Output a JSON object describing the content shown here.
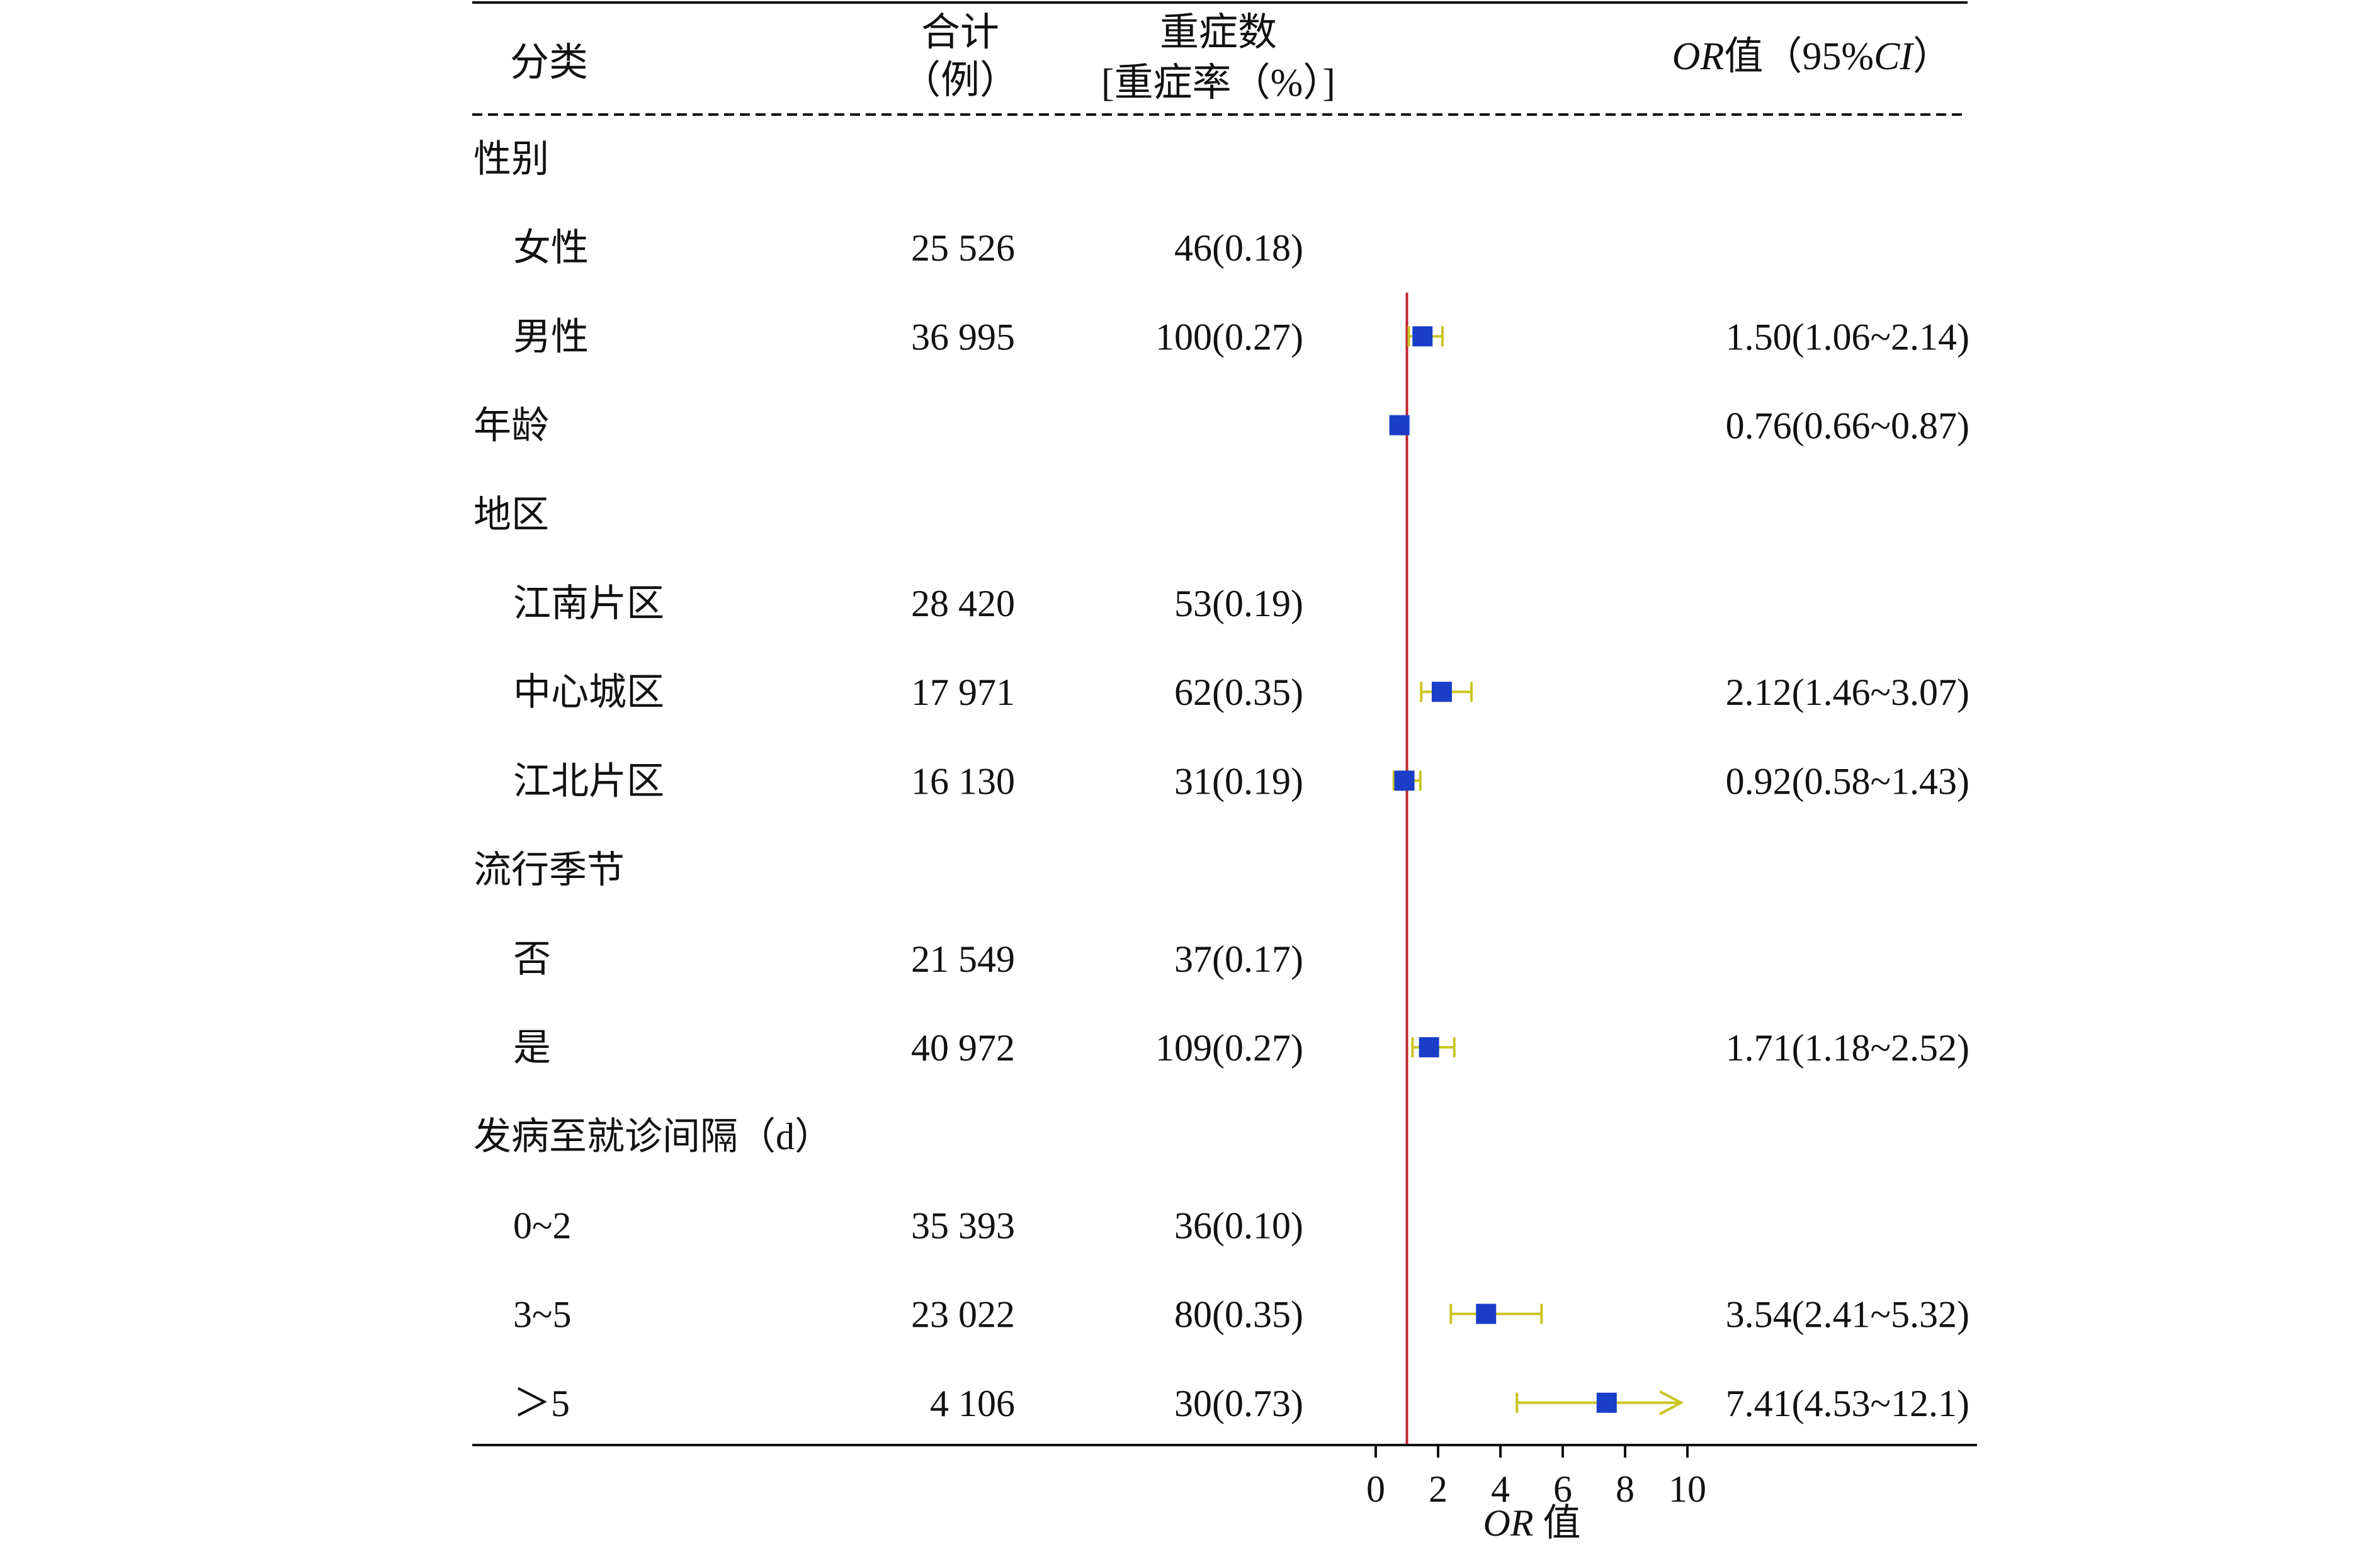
{
  "header": {
    "col_category": "分类",
    "col_total_line1": "合计",
    "col_total_line2": "（例）",
    "col_severe_line1": "重症数",
    "col_severe_line2": "[重症率（%）]",
    "col_or_or": "OR",
    "col_or_suffix": "值（95%",
    "col_or_ci": "CI",
    "col_or_close": "）"
  },
  "chart_data": {
    "type": "forest",
    "xlabel_or": "OR",
    "xlabel_suffix": "值",
    "xlim": [
      0,
      10
    ],
    "xticks": [
      "0",
      "2",
      "4",
      "6",
      "8",
      "10"
    ],
    "reference_line": 1,
    "colors": {
      "point": "#1a3ec8",
      "ci": "#c9c51f",
      "reference": "#c0262d",
      "text": "#111111"
    },
    "rows": [
      {
        "label": "性别",
        "indent": 0,
        "total": "",
        "severe": "",
        "or_text": "",
        "or": null,
        "lo": null,
        "hi": null
      },
      {
        "label": "女性",
        "indent": 1,
        "total": "25 526",
        "severe": "46(0.18)",
        "or_text": "",
        "or": null,
        "lo": null,
        "hi": null
      },
      {
        "label": "男性",
        "indent": 1,
        "total": "36 995",
        "severe": "100(0.27)",
        "or_text": "1.50(1.06~2.14)",
        "or": 1.5,
        "lo": 1.06,
        "hi": 2.14
      },
      {
        "label": "年龄",
        "indent": 0,
        "total": "",
        "severe": "",
        "or_text": "0.76(0.66~0.87)",
        "or": 0.76,
        "lo": 0.66,
        "hi": 0.87
      },
      {
        "label": "地区",
        "indent": 0,
        "total": "",
        "severe": "",
        "or_text": "",
        "or": null,
        "lo": null,
        "hi": null
      },
      {
        "label": "江南片区",
        "indent": 1,
        "total": "28 420",
        "severe": "53(0.19)",
        "or_text": "",
        "or": null,
        "lo": null,
        "hi": null
      },
      {
        "label": "中心城区",
        "indent": 1,
        "total": "17 971",
        "severe": "62(0.35)",
        "or_text": "2.12(1.46~3.07)",
        "or": 2.12,
        "lo": 1.46,
        "hi": 3.07
      },
      {
        "label": "江北片区",
        "indent": 1,
        "total": "16 130",
        "severe": "31(0.19)",
        "or_text": "0.92(0.58~1.43)",
        "or": 0.92,
        "lo": 0.58,
        "hi": 1.43
      },
      {
        "label": "流行季节",
        "indent": 0,
        "total": "",
        "severe": "",
        "or_text": "",
        "or": null,
        "lo": null,
        "hi": null
      },
      {
        "label": "否",
        "indent": 1,
        "total": "21 549",
        "severe": "37(0.17)",
        "or_text": "",
        "or": null,
        "lo": null,
        "hi": null
      },
      {
        "label": "是",
        "indent": 1,
        "total": "40 972",
        "severe": "109(0.27)",
        "or_text": "1.71(1.18~2.52)",
        "or": 1.71,
        "lo": 1.18,
        "hi": 2.52
      },
      {
        "label": "发病至就诊间隔（d）",
        "indent": 0,
        "total": "",
        "severe": "",
        "or_text": "",
        "or": null,
        "lo": null,
        "hi": null
      },
      {
        "label": "0~2",
        "indent": 1,
        "total": "35 393",
        "severe": "36(0.10)",
        "or_text": "",
        "or": null,
        "lo": null,
        "hi": null
      },
      {
        "label": "3~5",
        "indent": 1,
        "total": "23 022",
        "severe": "80(0.35)",
        "or_text": "3.54(2.41~5.32)",
        "or": 3.54,
        "lo": 2.41,
        "hi": 5.32
      },
      {
        "label": "＞5",
        "indent": 1,
        "total": "4 106",
        "severe": "30(0.73)",
        "or_text": "7.41(4.53~12.1)",
        "or": 7.41,
        "lo": 4.53,
        "hi": 12.1
      }
    ]
  }
}
